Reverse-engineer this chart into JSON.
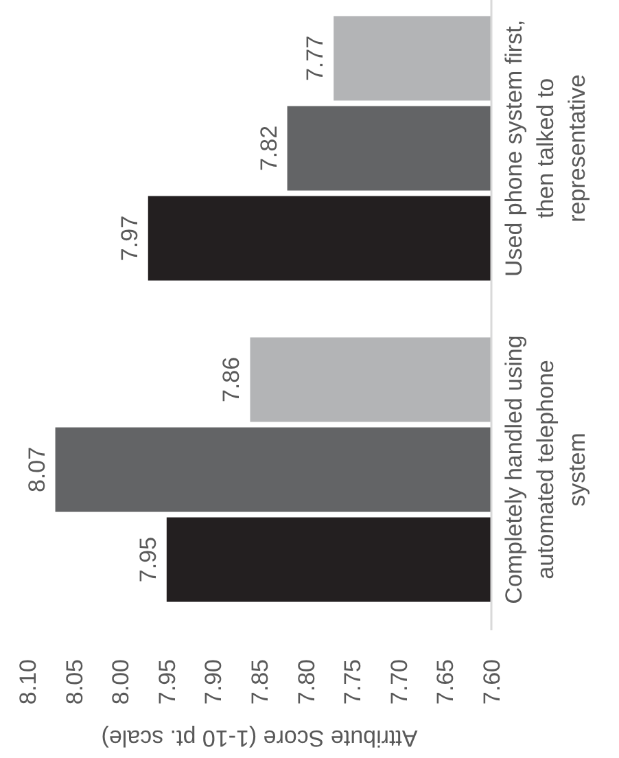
{
  "chart_data": {
    "type": "bar",
    "orientation": "horizontal",
    "xlabel": "Attribute Score (1-10 pt. scale)",
    "categories": [
      "Used phone system first, then talked to representative",
      "Completely handled using automated telephone system"
    ],
    "series": [
      {
        "color": "#b3b4b6",
        "values": [
          7.77,
          7.86
        ]
      },
      {
        "color": "#636466",
        "values": [
          7.82,
          8.07
        ]
      },
      {
        "color": "#231f20",
        "values": [
          7.97,
          7.95
        ]
      }
    ],
    "xlim": [
      8.1,
      7.6
    ],
    "xticks": [
      {
        "value": 8.1,
        "label": "8.10"
      },
      {
        "value": 8.05,
        "label": "8.05"
      },
      {
        "value": 8.0,
        "label": "8.00"
      },
      {
        "value": 7.95,
        "label": "7.95"
      },
      {
        "value": 7.9,
        "label": "7.90"
      },
      {
        "value": 7.85,
        "label": "7.85"
      },
      {
        "value": 7.8,
        "label": "7.80"
      },
      {
        "value": 7.75,
        "label": "7.75"
      },
      {
        "value": 7.7,
        "label": "7.70"
      },
      {
        "value": 7.65,
        "label": "7.65"
      },
      {
        "value": 7.6,
        "label": "7.60"
      }
    ],
    "data_labels": true
  }
}
